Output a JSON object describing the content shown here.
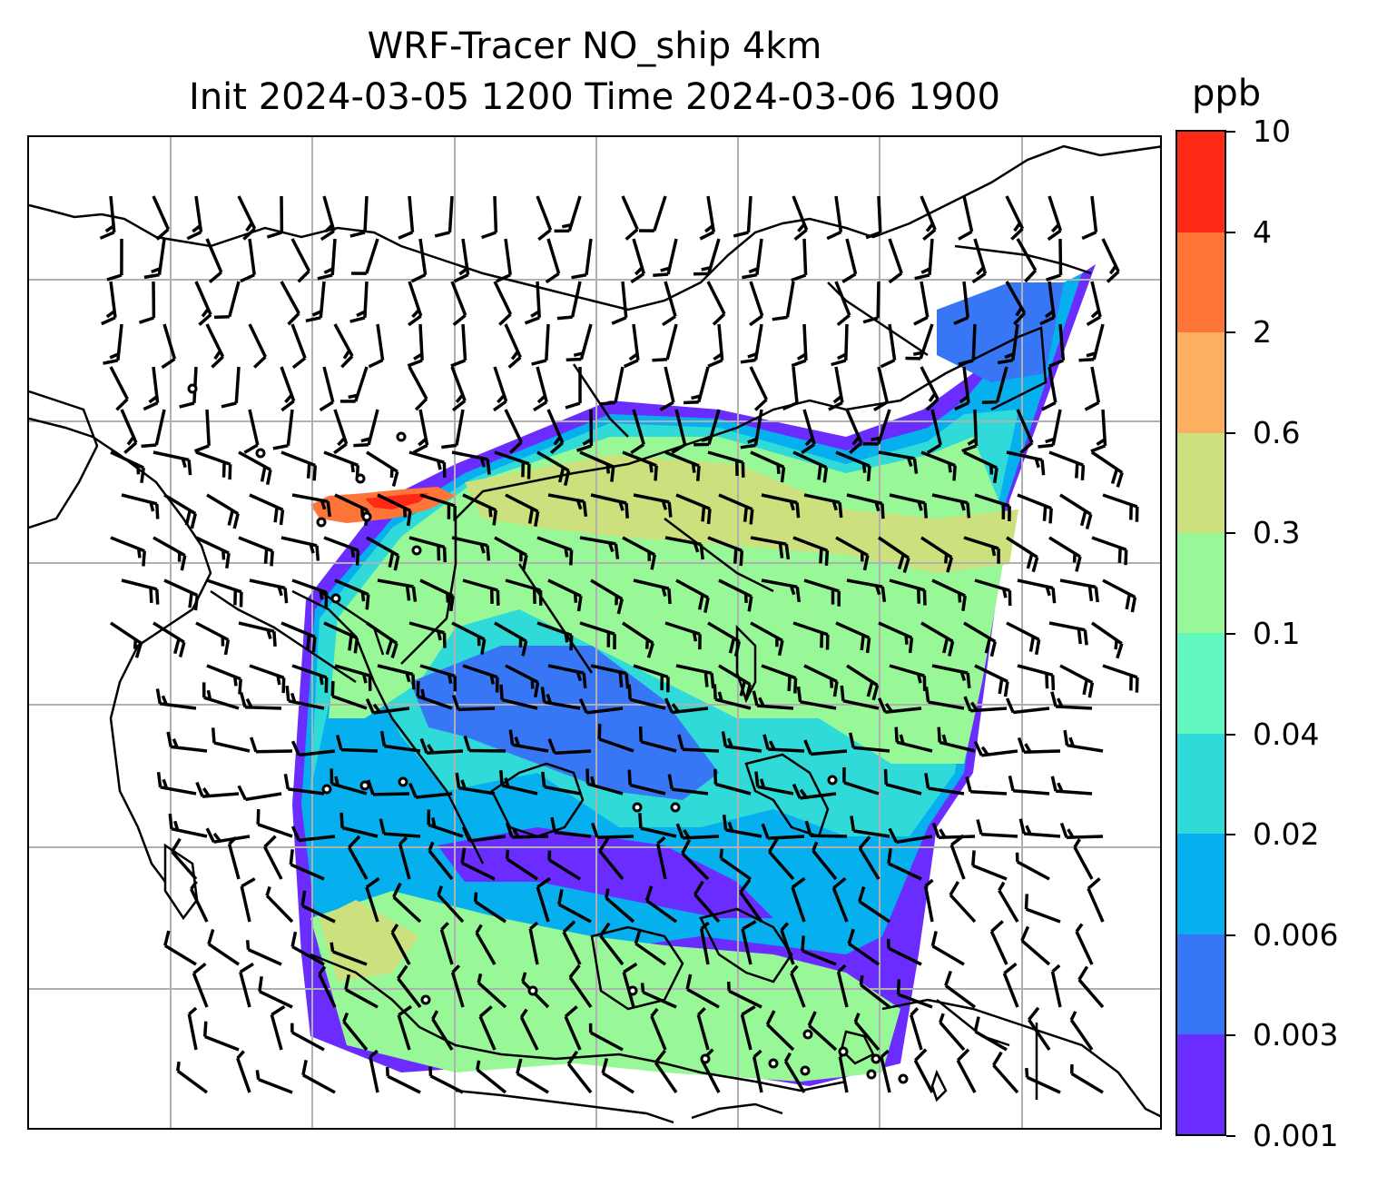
{
  "title": {
    "line1": "WRF-Tracer NO_ship 4km",
    "line2": "Init 2024-03-05 1200 Time 2024-03-06 1900"
  },
  "map": {
    "variable": "NO_ship",
    "gridlines": true,
    "features": [
      "coastlines",
      "country-borders",
      "wind-barbs",
      "calm-wind-circles",
      "filled-contours"
    ],
    "wind_barb_color": "#000000",
    "gridline_color": "#b0b0b0"
  },
  "colorbar": {
    "unit": "ppb",
    "ticks": [
      "10",
      "4",
      "2",
      "0.6",
      "0.3",
      "0.1",
      "0.04",
      "0.02",
      "0.006",
      "0.003",
      "0.001"
    ],
    "colors": [
      "#6a2cff",
      "#3776f5",
      "#06b0ee",
      "#30dad8",
      "#62f8c0",
      "#98f898",
      "#cde07e",
      "#fdae61",
      "#ff7538",
      "#ff2a16"
    ]
  }
}
